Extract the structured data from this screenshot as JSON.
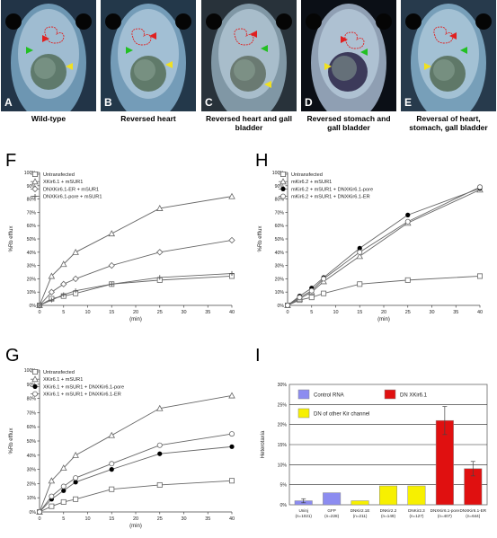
{
  "photo_panels": [
    {
      "letter": "A",
      "caption": "Wild-type"
    },
    {
      "letter": "B",
      "caption": "Reversed heart"
    },
    {
      "letter": "C",
      "caption": "Reversed heart and gall bladder"
    },
    {
      "letter": "D",
      "caption": "Reversed stomach and gall bladder"
    },
    {
      "letter": "E",
      "caption": "Reversal of heart, stomach, gall bladder"
    }
  ],
  "arrow_colors": {
    "heart": "#e02020",
    "gall": "#22c022",
    "stomach": "#f0e020"
  },
  "chart_data": [
    {
      "id": "F",
      "type": "line",
      "xlabel": "(min)",
      "ylabel": "%Rb efflux",
      "x": [
        0,
        2.5,
        5,
        7.5,
        15,
        25,
        40
      ],
      "xticks": [
        0,
        5,
        10,
        15,
        20,
        25,
        30,
        35,
        40
      ],
      "yticks": [
        "0%",
        "10%",
        "20%",
        "30%",
        "40%",
        "50%",
        "60%",
        "70%",
        "80%",
        "90%",
        "100%"
      ],
      "ylim": [
        0,
        100
      ],
      "series": [
        {
          "name": "Untransfected",
          "marker": "square",
          "values": [
            0,
            5,
            7,
            9,
            16,
            19,
            22
          ]
        },
        {
          "name": "XKir6.1 + mSUR1",
          "marker": "triangle",
          "values": [
            0,
            22,
            31,
            40,
            54,
            73,
            82
          ]
        },
        {
          "name": "DNXKir6.1-ER + mSUR1",
          "marker": "diamond",
          "values": [
            0,
            10,
            16,
            20,
            30,
            40,
            49
          ]
        },
        {
          "name": "DNXKir6.1-pore + mSUR1",
          "marker": "plus",
          "values": [
            0,
            4,
            8,
            11,
            16,
            21,
            24
          ]
        }
      ]
    },
    {
      "id": "H",
      "type": "line",
      "xlabel": "(min)",
      "ylabel": "%Rb efflux",
      "x": [
        0,
        2.5,
        5,
        7.5,
        15,
        25,
        40
      ],
      "xticks": [
        0,
        5,
        10,
        15,
        20,
        25,
        30,
        35,
        40
      ],
      "yticks": [
        "0%",
        "10%",
        "20%",
        "30%",
        "40%",
        "50%",
        "60%",
        "70%",
        "80%",
        "90%",
        "100%"
      ],
      "ylim": [
        0,
        100
      ],
      "series": [
        {
          "name": "Untransfected",
          "marker": "square",
          "values": [
            0,
            4,
            6,
            9,
            16,
            19,
            22
          ]
        },
        {
          "name": "mKir6.2 + mSUR1",
          "marker": "triangle",
          "values": [
            0,
            5,
            10,
            18,
            37,
            62,
            87
          ]
        },
        {
          "name": "mKir6.2 + mSUR1 + DNXKir6.1-pore",
          "marker": "filled-circle",
          "values": [
            0,
            7,
            13,
            21,
            43,
            68,
            88
          ]
        },
        {
          "name": "mKir6.2 + mSUR1 + DNXKir6.1-ER",
          "marker": "circle",
          "values": [
            0,
            6,
            11,
            20,
            40,
            63,
            89
          ]
        }
      ]
    },
    {
      "id": "G",
      "type": "line",
      "xlabel": "(min)",
      "ylabel": "%Rb efflux",
      "x": [
        0,
        2.5,
        5,
        7.5,
        15,
        25,
        40
      ],
      "xticks": [
        0,
        5,
        10,
        15,
        20,
        25,
        30,
        35,
        40
      ],
      "yticks": [
        "0%",
        "10%",
        "20%",
        "30%",
        "40%",
        "50%",
        "60%",
        "70%",
        "80%",
        "90%",
        "100%"
      ],
      "ylim": [
        0,
        100
      ],
      "series": [
        {
          "name": "Untransfected",
          "marker": "square",
          "values": [
            0,
            4,
            7,
            9,
            16,
            19,
            22
          ]
        },
        {
          "name": "XKir6.1 + mSUR1",
          "marker": "triangle",
          "values": [
            0,
            22,
            31,
            40,
            54,
            73,
            82
          ]
        },
        {
          "name": "XKir6.1 + mSUR1 + DNXKir6.1-pore",
          "marker": "filled-circle",
          "values": [
            0,
            9,
            15,
            21,
            30,
            41,
            46
          ]
        },
        {
          "name": "XKir6.1 + mSUR1 + DNXKir6.1-ER",
          "marker": "circle",
          "values": [
            0,
            11,
            18,
            24,
            34,
            47,
            55
          ]
        }
      ]
    },
    {
      "id": "I",
      "type": "bar",
      "ylabel": "Heterotaxia",
      "yticks": [
        "0%",
        "5%",
        "10%",
        "15%",
        "20%",
        "25%",
        "30%"
      ],
      "ylim": [
        0,
        30
      ],
      "legend": [
        {
          "label": "Control RNA",
          "color": "#8c8cf0"
        },
        {
          "label": "DN XKir6.1",
          "color": "#e01010"
        },
        {
          "label": "DN of other Kir channel",
          "color": "#f7f000"
        }
      ],
      "categories": [
        "Uninj",
        "GFP",
        "DNKir2.1E",
        "DNKir2.2",
        "DNKir2.3",
        "DNXKir6.1-pore",
        "DNXKir6.1-ER"
      ],
      "ns": [
        "(n=1021)",
        "(n=228)",
        "(n=211)",
        "(n=149)",
        "(n=127)",
        "(n=407)",
        "(n=644)"
      ],
      "values": [
        1.0,
        3.0,
        1.0,
        4.7,
        4.7,
        21.0,
        9.0
      ],
      "errors": [
        0.5,
        0,
        0,
        0,
        0,
        3.5,
        1.8
      ],
      "groups": [
        0,
        0,
        2,
        2,
        2,
        1,
        1
      ]
    }
  ]
}
